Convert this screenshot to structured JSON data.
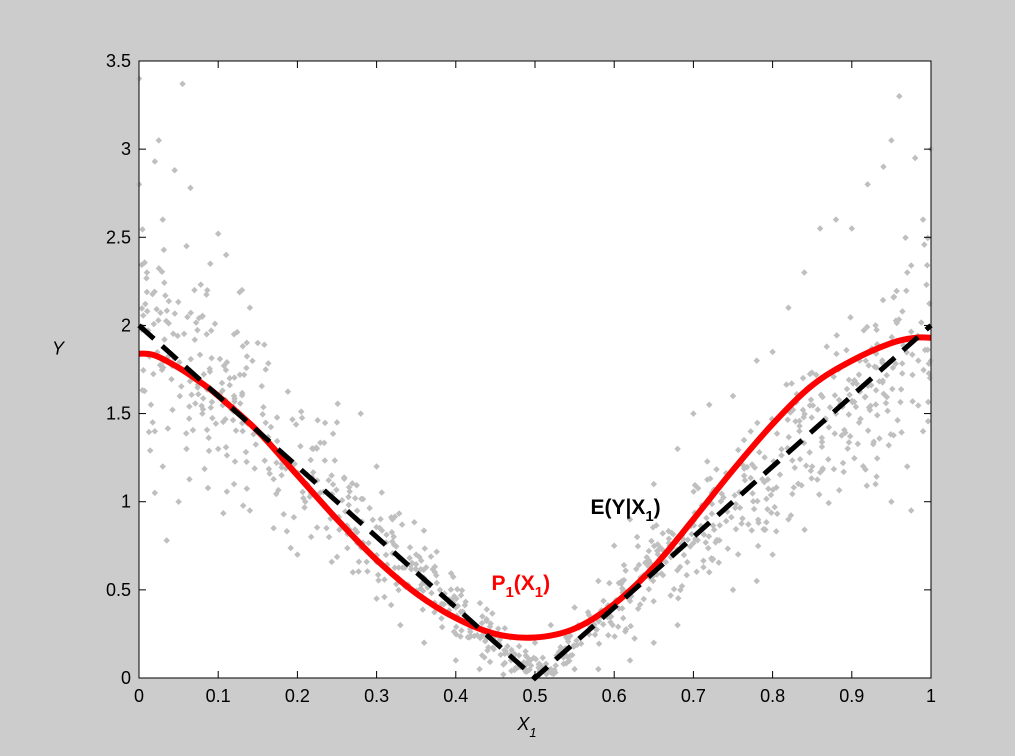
{
  "chart_data": {
    "type": "scatter",
    "title": "",
    "xlabel": "X",
    "xlabel_sub": "1",
    "ylabel": "Y",
    "xlim": [
      0,
      1
    ],
    "ylim": [
      0,
      3.5
    ],
    "xticks": [
      "0",
      "0.1",
      "0.2",
      "0.3",
      "0.4",
      "0.5",
      "0.6",
      "0.7",
      "0.8",
      "0.9",
      "1"
    ],
    "yticks": [
      "0",
      "0.5",
      "1",
      "1.5",
      "2",
      "2.5",
      "3",
      "3.5"
    ],
    "grid": false,
    "legend": "none",
    "colors": {
      "figure_bg": "#cccccc",
      "axes_bg": "#ffffff",
      "scatter": "#bfbfbf",
      "fit": "#ff0000",
      "truth": "#000000"
    },
    "annotations": [
      {
        "id": "p1",
        "text": "P",
        "sub": "1",
        "text2": "(X",
        "sub2": "1",
        "close": ")",
        "color": "#ff0000",
        "x": 0.445,
        "y": 0.5
      },
      {
        "id": "ey",
        "text": "E(Y|X",
        "sub": "1",
        "close": ")",
        "color": "#000000",
        "x": 0.57,
        "y": 0.93
      }
    ],
    "series": [
      {
        "kind": "scatter",
        "color": "#bfbfbf",
        "n": 1000,
        "points": [
          [
            0.0,
            3.4
          ],
          [
            0.0,
            2.8
          ],
          [
            0.02,
            2.93
          ],
          [
            0.025,
            3.05
          ],
          [
            0.055,
            3.37
          ],
          [
            0.065,
            2.78
          ],
          [
            0.03,
            2.6
          ],
          [
            0.045,
            2.88
          ],
          [
            0.01,
            2.3
          ],
          [
            0.06,
            2.45
          ],
          [
            0.1,
            2.52
          ],
          [
            0.11,
            2.4
          ],
          [
            0.07,
            2.2
          ],
          [
            0.09,
            2.35
          ],
          [
            0.08,
            2.05
          ],
          [
            0.13,
            2.2
          ],
          [
            0.12,
            1.95
          ],
          [
            0.15,
            1.9
          ],
          [
            0.14,
            2.1
          ],
          [
            0.16,
            1.75
          ],
          [
            0.02,
            1.4
          ],
          [
            0.03,
            1.2
          ],
          [
            0.02,
            1.05
          ],
          [
            0.035,
            0.78
          ],
          [
            0.05,
            1.0
          ],
          [
            0.06,
            1.3
          ],
          [
            0.08,
            1.5
          ],
          [
            0.1,
            1.3
          ],
          [
            0.12,
            1.1
          ],
          [
            0.14,
            0.95
          ],
          [
            0.17,
            0.85
          ],
          [
            0.2,
            0.7
          ],
          [
            0.22,
            1.3
          ],
          [
            0.25,
            1.45
          ],
          [
            0.28,
            1.5
          ],
          [
            0.3,
            1.2
          ],
          [
            0.32,
            0.9
          ],
          [
            0.35,
            0.7
          ],
          [
            0.38,
            0.5
          ],
          [
            0.4,
            0.4
          ],
          [
            0.42,
            0.3
          ],
          [
            0.45,
            0.25
          ],
          [
            0.48,
            0.18
          ],
          [
            0.5,
            0.2
          ],
          [
            0.52,
            0.3
          ],
          [
            0.55,
            0.4
          ],
          [
            0.58,
            0.55
          ],
          [
            0.6,
            0.75
          ],
          [
            0.62,
            0.9
          ],
          [
            0.65,
            1.1
          ],
          [
            0.68,
            1.3
          ],
          [
            0.7,
            1.5
          ],
          [
            0.72,
            1.55
          ],
          [
            0.75,
            1.6
          ],
          [
            0.78,
            1.8
          ],
          [
            0.8,
            1.85
          ],
          [
            0.82,
            2.1
          ],
          [
            0.84,
            2.3
          ],
          [
            0.86,
            2.55
          ],
          [
            0.88,
            2.6
          ],
          [
            0.9,
            2.55
          ],
          [
            0.92,
            2.8
          ],
          [
            0.94,
            2.9
          ],
          [
            0.96,
            3.3
          ],
          [
            0.95,
            3.05
          ],
          [
            0.98,
            2.95
          ],
          [
            1.0,
            3.0
          ],
          [
            0.99,
            2.6
          ],
          [
            0.97,
            2.3
          ],
          [
            0.93,
            2.0
          ],
          [
            0.91,
            1.8
          ],
          [
            0.88,
            1.5
          ],
          [
            0.85,
            1.2
          ],
          [
            0.82,
            0.9
          ],
          [
            0.8,
            0.7
          ],
          [
            0.78,
            0.55
          ],
          [
            0.75,
            0.5
          ],
          [
            0.72,
            0.6
          ],
          [
            0.68,
            0.3
          ],
          [
            0.65,
            0.2
          ],
          [
            0.62,
            0.1
          ],
          [
            0.58,
            0.05
          ],
          [
            0.55,
            0.05
          ],
          [
            0.52,
            0.05
          ],
          [
            0.46,
            0.02
          ],
          [
            0.43,
            0.05
          ],
          [
            0.4,
            0.1
          ],
          [
            0.36,
            0.2
          ],
          [
            0.33,
            0.3
          ],
          [
            0.3,
            0.45
          ],
          [
            0.27,
            0.6
          ],
          [
            0.24,
            0.8
          ],
          [
            0.21,
            1.0
          ],
          [
            0.18,
            1.15
          ],
          [
            0.15,
            1.4
          ],
          [
            0.12,
            1.6
          ],
          [
            0.95,
            1.0
          ],
          [
            0.97,
            1.2
          ],
          [
            0.99,
            1.4
          ],
          [
            1.0,
            1.8
          ],
          [
            0.975,
            0.95
          ],
          [
            0.93,
            1.1
          ]
        ]
      },
      {
        "kind": "line",
        "name": "P1(X1)",
        "color": "#ff0000",
        "style": "solid",
        "x": [
          0.0,
          0.02,
          0.05,
          0.08,
          0.1,
          0.15,
          0.2,
          0.25,
          0.3,
          0.35,
          0.4,
          0.45,
          0.5,
          0.55,
          0.6,
          0.65,
          0.7,
          0.75,
          0.8,
          0.85,
          0.9,
          0.95,
          0.98,
          1.0
        ],
        "y": [
          1.84,
          1.83,
          1.76,
          1.67,
          1.6,
          1.4,
          1.15,
          0.9,
          0.67,
          0.48,
          0.34,
          0.25,
          0.23,
          0.28,
          0.42,
          0.63,
          0.9,
          1.18,
          1.44,
          1.66,
          1.8,
          1.9,
          1.93,
          1.93
        ]
      },
      {
        "kind": "line",
        "name": "E(Y|X1)",
        "color": "#000000",
        "style": "dashed",
        "x": [
          0.0,
          0.5,
          1.0
        ],
        "y": [
          2.0,
          0.0,
          2.0
        ]
      }
    ]
  }
}
